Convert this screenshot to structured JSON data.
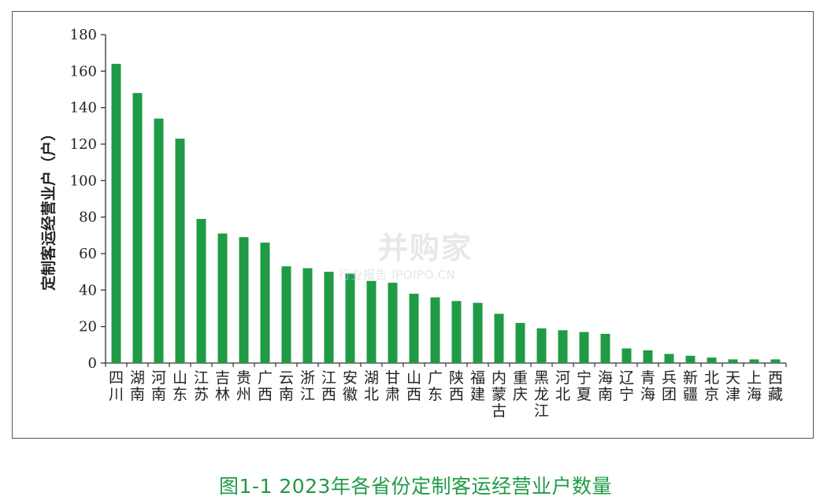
{
  "caption": "图1-1  2023年各省份定制客运经营业户数量",
  "watermark": {
    "brand": "并购家",
    "sub": "行业报告 IPOIPO.CN"
  },
  "colors": {
    "bar": "#1f9b46",
    "axis": "#333333",
    "caption": "#1f9b46"
  },
  "chart_data": {
    "type": "bar",
    "title": "",
    "xlabel": "",
    "ylabel": "定制客运经营业户（户）",
    "ylim": [
      0,
      180
    ],
    "yticks": [
      0,
      20,
      40,
      60,
      80,
      100,
      120,
      140,
      160,
      180
    ],
    "grid": false,
    "legend": "none",
    "categories": [
      "四川",
      "湖南",
      "河南",
      "山东",
      "江苏",
      "吉林",
      "贵州",
      "广西",
      "云南",
      "浙江",
      "江西",
      "安徽",
      "湖北",
      "甘肃",
      "山西",
      "广东",
      "陕西",
      "福建",
      "内蒙古",
      "重庆",
      "黑龙江",
      "河北",
      "宁夏",
      "海南",
      "辽宁",
      "青海",
      "兵团",
      "新疆",
      "北京",
      "天津",
      "上海",
      "西藏"
    ],
    "values": [
      164,
      148,
      134,
      123,
      79,
      71,
      69,
      66,
      53,
      52,
      50,
      49,
      45,
      44,
      38,
      36,
      34,
      33,
      27,
      22,
      19,
      18,
      17,
      16,
      8,
      7,
      5,
      4,
      3,
      2,
      2,
      2
    ]
  }
}
